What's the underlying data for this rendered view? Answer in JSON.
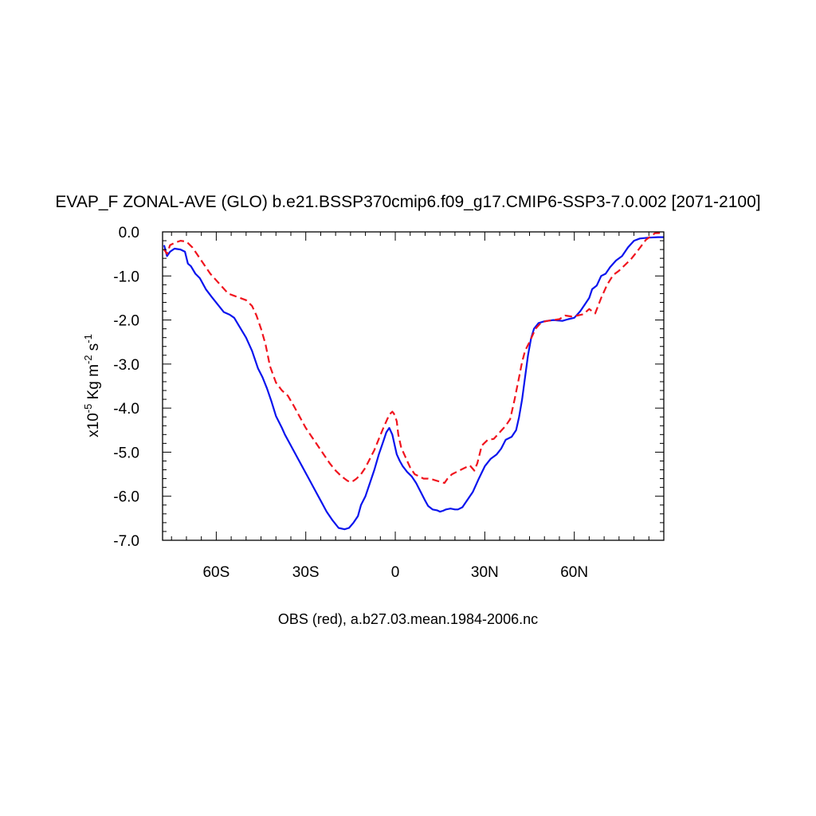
{
  "chart_data": {
    "type": "line",
    "title": "EVAP_F ZONAL-AVE (GLO) b.e21.BSSP370cmip6.f09_g17.CMIP6-SSP3-7.0.002 [2071-2100]",
    "caption": "OBS (red), a.b27.03.mean.1984-2006.nc",
    "ylabel": {
      "prefix": "x10",
      "exp1": "-5",
      "mid": " Kg m",
      "exp2": "-2",
      "mid2": " s",
      "exp3": "-1"
    },
    "xlim": [
      -78,
      90
    ],
    "ylim": [
      -7.0,
      0.0
    ],
    "grid": false,
    "x_ticks": [
      {
        "value": -60,
        "label": "60S"
      },
      {
        "value": -30,
        "label": "30S"
      },
      {
        "value": 0,
        "label": "0"
      },
      {
        "value": 30,
        "label": "30N"
      },
      {
        "value": 60,
        "label": "60N"
      }
    ],
    "y_ticks": [
      {
        "value": 0,
        "label": "0.0"
      },
      {
        "value": -1,
        "label": "-1.0"
      },
      {
        "value": -2,
        "label": "-2.0"
      },
      {
        "value": -3,
        "label": "-3.0"
      },
      {
        "value": -4,
        "label": "-4.0"
      },
      {
        "value": -5,
        "label": "-5.0"
      },
      {
        "value": -6,
        "label": "-6.0"
      },
      {
        "value": -7,
        "label": "-7.0"
      }
    ],
    "series": [
      {
        "color": "#0a14ee",
        "dash": "solid",
        "x": [
          -77.5,
          -76.5,
          -75.5,
          -74,
          -72,
          -70.5,
          -69.5,
          -68.5,
          -67,
          -65.5,
          -63.5,
          -61.5,
          -59.5,
          -57.5,
          -55.5,
          -54,
          -52.5,
          -50,
          -48,
          -46,
          -44.5,
          -43,
          -41.5,
          -40,
          -38,
          -37,
          -35,
          -33,
          -31,
          -29,
          -27,
          -25,
          -23,
          -21,
          -19,
          -17,
          -15.5,
          -14,
          -12.5,
          -11.5,
          -10,
          -8.5,
          -7,
          -5.5,
          -4,
          -3,
          -2,
          -1,
          0,
          0.5,
          1.5,
          2.5,
          4,
          5.5,
          7,
          8.5,
          10,
          11,
          12.5,
          14,
          15,
          16,
          17,
          18.5,
          20,
          21,
          22.5,
          24,
          26,
          28,
          30,
          32,
          34,
          35.5,
          37,
          39,
          40.5,
          41.5,
          42.5,
          43.5,
          44.5,
          45.5,
          46.5,
          48,
          50,
          53,
          56,
          58,
          60,
          62,
          63.5,
          65,
          66,
          67.5,
          69,
          70.5,
          72,
          74,
          76,
          78,
          80,
          82,
          85,
          88,
          90
        ],
        "y": [
          -0.3,
          -0.55,
          -0.45,
          -0.38,
          -0.4,
          -0.45,
          -0.72,
          -0.78,
          -0.95,
          -1.05,
          -1.3,
          -1.48,
          -1.65,
          -1.82,
          -1.88,
          -1.95,
          -2.12,
          -2.4,
          -2.7,
          -3.1,
          -3.3,
          -3.55,
          -3.85,
          -4.18,
          -4.45,
          -4.6,
          -4.85,
          -5.1,
          -5.35,
          -5.6,
          -5.85,
          -6.1,
          -6.35,
          -6.55,
          -6.72,
          -6.75,
          -6.72,
          -6.6,
          -6.45,
          -6.2,
          -6.0,
          -5.7,
          -5.4,
          -5.05,
          -4.75,
          -4.55,
          -4.45,
          -4.6,
          -4.9,
          -5.05,
          -5.2,
          -5.32,
          -5.45,
          -5.55,
          -5.7,
          -5.9,
          -6.1,
          -6.22,
          -6.3,
          -6.32,
          -6.35,
          -6.33,
          -6.3,
          -6.28,
          -6.3,
          -6.3,
          -6.25,
          -6.1,
          -5.9,
          -5.6,
          -5.32,
          -5.15,
          -5.05,
          -4.92,
          -4.72,
          -4.65,
          -4.5,
          -4.2,
          -3.8,
          -3.3,
          -2.8,
          -2.42,
          -2.2,
          -2.07,
          -2.03,
          -2.0,
          -2.02,
          -1.98,
          -1.95,
          -1.8,
          -1.65,
          -1.5,
          -1.3,
          -1.22,
          -1.0,
          -0.95,
          -0.8,
          -0.65,
          -0.55,
          -0.35,
          -0.2,
          -0.15,
          -0.13,
          -0.12,
          -0.12
        ]
      },
      {
        "color": "#f0141e",
        "dash": "dashed",
        "x": [
          -77.5,
          -76.5,
          -75.5,
          -74,
          -72,
          -70,
          -68,
          -66,
          -64,
          -62,
          -60,
          -58,
          -56,
          -54,
          -52,
          -50,
          -48,
          -46.5,
          -45,
          -43.5,
          -42,
          -40,
          -38,
          -36,
          -34,
          -32,
          -30,
          -28,
          -26,
          -24,
          -22,
          -20,
          -18,
          -16,
          -15,
          -14,
          -13,
          -11.5,
          -10,
          -8.5,
          -7,
          -5.5,
          -4,
          -3,
          -2,
          -1,
          -0.5,
          0,
          0.5,
          1,
          2,
          3,
          4,
          5,
          6.5,
          8,
          9.5,
          11,
          12.5,
          14,
          15.5,
          16.5,
          17.5,
          19,
          20.5,
          22,
          23.5,
          25,
          26.5,
          27.5,
          29,
          31,
          33,
          35,
          37,
          38.5,
          40,
          41.5,
          42.5,
          43.5,
          45,
          47,
          49,
          51,
          53,
          55,
          57,
          59,
          61,
          63,
          65,
          67,
          69,
          71,
          73,
          75,
          77,
          79,
          81,
          84,
          87,
          90
        ],
        "y": [
          -0.4,
          -0.5,
          -0.3,
          -0.25,
          -0.2,
          -0.22,
          -0.35,
          -0.55,
          -0.75,
          -0.95,
          -1.1,
          -1.25,
          -1.4,
          -1.45,
          -1.5,
          -1.55,
          -1.68,
          -1.9,
          -2.2,
          -2.55,
          -3.05,
          -3.42,
          -3.6,
          -3.72,
          -3.95,
          -4.2,
          -4.45,
          -4.65,
          -4.85,
          -5.05,
          -5.25,
          -5.42,
          -5.55,
          -5.65,
          -5.68,
          -5.65,
          -5.6,
          -5.5,
          -5.35,
          -5.15,
          -4.95,
          -4.7,
          -4.45,
          -4.3,
          -4.15,
          -4.08,
          -4.12,
          -4.2,
          -4.3,
          -4.6,
          -4.9,
          -5.05,
          -5.2,
          -5.35,
          -5.5,
          -5.55,
          -5.6,
          -5.6,
          -5.62,
          -5.65,
          -5.68,
          -5.7,
          -5.6,
          -5.5,
          -5.45,
          -5.4,
          -5.35,
          -5.3,
          -5.42,
          -5.25,
          -4.85,
          -4.72,
          -4.7,
          -4.55,
          -4.4,
          -4.25,
          -3.8,
          -3.3,
          -2.95,
          -2.7,
          -2.5,
          -2.2,
          -2.05,
          -2.02,
          -2.0,
          -1.98,
          -1.9,
          -1.92,
          -1.9,
          -1.87,
          -1.75,
          -1.85,
          -1.5,
          -1.2,
          -0.98,
          -0.88,
          -0.75,
          -0.62,
          -0.45,
          -0.18,
          -0.03,
          -0.02
        ]
      }
    ]
  }
}
